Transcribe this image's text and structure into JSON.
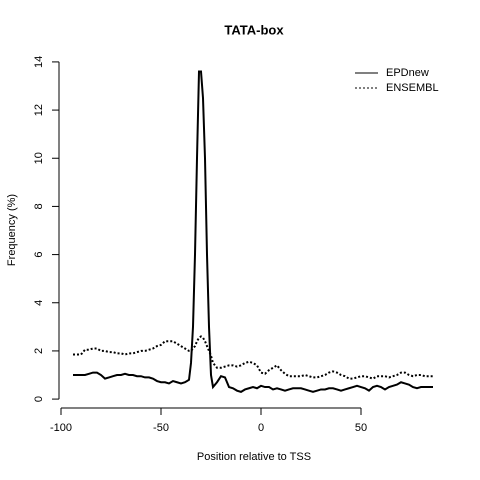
{
  "chart_data": {
    "type": "line",
    "title": "TATA-box",
    "x_label": "Position relative to TSS",
    "y_label": "Frequency (%)",
    "x": [
      -94,
      -92,
      -90,
      -88,
      -86,
      -84,
      -82,
      -80,
      -78,
      -76,
      -74,
      -72,
      -70,
      -68,
      -66,
      -64,
      -62,
      -60,
      -58,
      -56,
      -54,
      -52,
      -50,
      -48,
      -46,
      -44,
      -42,
      -40,
      -38,
      -36,
      -35,
      -34,
      -33,
      -32,
      -31,
      -30,
      -29,
      -28,
      -27,
      -26,
      -25,
      -24,
      -22,
      -20,
      -18,
      -16,
      -14,
      -12,
      -10,
      -8,
      -6,
      -4,
      -2,
      0,
      2,
      4,
      6,
      8,
      10,
      12,
      14,
      16,
      18,
      20,
      22,
      24,
      26,
      28,
      30,
      32,
      34,
      36,
      38,
      40,
      42,
      44,
      46,
      48,
      50,
      52,
      54,
      56,
      58,
      60,
      62,
      64,
      66,
      68,
      70,
      72,
      74,
      76,
      78,
      80,
      82,
      84,
      86
    ],
    "series": [
      {
        "name": "EPDnew",
        "color": "#000000",
        "line_style": "solid",
        "values": [
          1.0,
          1.0,
          1.0,
          1.0,
          1.05,
          1.1,
          1.1,
          1.0,
          0.85,
          0.9,
          0.95,
          1.0,
          1.0,
          1.05,
          1.0,
          1.0,
          0.95,
          0.95,
          0.9,
          0.9,
          0.85,
          0.75,
          0.7,
          0.7,
          0.65,
          0.75,
          0.7,
          0.65,
          0.7,
          0.8,
          1.5,
          3,
          6,
          10,
          13.6,
          13.6,
          12.5,
          10,
          6,
          3,
          1,
          0.5,
          0.7,
          0.95,
          0.9,
          0.5,
          0.45,
          0.35,
          0.3,
          0.4,
          0.45,
          0.5,
          0.45,
          0.55,
          0.5,
          0.5,
          0.4,
          0.45,
          0.4,
          0.35,
          0.4,
          0.45,
          0.45,
          0.45,
          0.4,
          0.35,
          0.3,
          0.35,
          0.4,
          0.4,
          0.45,
          0.45,
          0.4,
          0.35,
          0.4,
          0.45,
          0.5,
          0.55,
          0.5,
          0.45,
          0.35,
          0.5,
          0.55,
          0.5,
          0.4,
          0.5,
          0.55,
          0.6,
          0.7,
          0.65,
          0.6,
          0.5,
          0.45,
          0.5,
          0.5,
          0.5,
          0.5
        ]
      },
      {
        "name": "ENSEMBL",
        "color": "#000000",
        "line_style": "dotted",
        "values": [
          1.85,
          1.85,
          1.85,
          2.05,
          2.05,
          2.1,
          2.1,
          2.0,
          2.0,
          1.95,
          1.95,
          1.9,
          1.9,
          1.85,
          1.9,
          1.9,
          1.95,
          2.0,
          2.0,
          2.05,
          2.1,
          2.2,
          2.25,
          2.4,
          2.4,
          2.4,
          2.3,
          2.2,
          2.1,
          2.0,
          2.0,
          2.1,
          2.2,
          2.4,
          2.55,
          2.6,
          2.55,
          2.4,
          2.2,
          2.0,
          1.8,
          1.5,
          1.3,
          1.3,
          1.35,
          1.4,
          1.4,
          1.35,
          1.4,
          1.5,
          1.55,
          1.5,
          1.4,
          1.1,
          1.05,
          1.2,
          1.3,
          1.4,
          1.2,
          1.05,
          0.95,
          0.95,
          0.95,
          0.95,
          1.0,
          0.95,
          0.9,
          0.9,
          0.95,
          1.0,
          1.1,
          1.15,
          1.1,
          1.0,
          0.95,
          0.85,
          0.85,
          0.9,
          0.95,
          0.95,
          0.9,
          0.85,
          0.95,
          0.95,
          0.95,
          0.9,
          0.95,
          1.0,
          1.1,
          1.1,
          1.0,
          0.95,
          1.0,
          1.0,
          0.95,
          0.95,
          0.95
        ]
      }
    ],
    "xlim": [
      -101,
      94
    ],
    "ylim": [
      -0.37,
      14.37
    ],
    "xticks": [
      -100,
      -50,
      0,
      50
    ],
    "yticks": [
      0,
      2,
      4,
      6,
      8,
      10,
      12,
      14
    ],
    "legend_position": "top-right",
    "grid": false
  }
}
